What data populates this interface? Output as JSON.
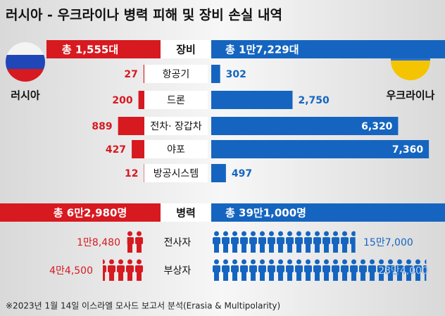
{
  "title": "러시아 - 우크라이나 병력 피해 및 장비 손실 내역",
  "source": "※2023년 1월 14일 이스라엘 모사드 보고서 분석(Erasia & Multipolarity)",
  "chart_data": [
    {
      "type": "butterfly",
      "center_title": "장비",
      "left_total": "총 1,555대",
      "right_total": "총 1만7,229대",
      "categories": [
        "항공기",
        "드론",
        "전차· 장갑차",
        "야포",
        "방공시스템"
      ],
      "series": [
        {
          "name": "러시아",
          "color": "#d71920",
          "values": [
            27,
            200,
            889,
            427,
            12
          ]
        },
        {
          "name": "우크라이나",
          "color": "#1565c0",
          "values": [
            302,
            2750,
            6320,
            7360,
            497
          ],
          "value_labels": [
            "302",
            "2,750",
            "6,320",
            "7,360",
            "497"
          ]
        }
      ]
    },
    {
      "type": "icon-butterfly",
      "center_title": "병력",
      "left_total": "총 6만2,980명",
      "right_total": "총 39만1,000명",
      "categories": [
        "전사자",
        "부상자"
      ],
      "series": [
        {
          "color": "#d71920",
          "values": [
            18480,
            44500
          ],
          "value_labels": [
            "1만8,480",
            "4만4,500"
          ]
        },
        {
          "color": "#1565c0",
          "values": [
            157000,
            234000
          ],
          "value_labels": [
            "15만7,000",
            "23만4,000"
          ]
        }
      ]
    }
  ]
}
